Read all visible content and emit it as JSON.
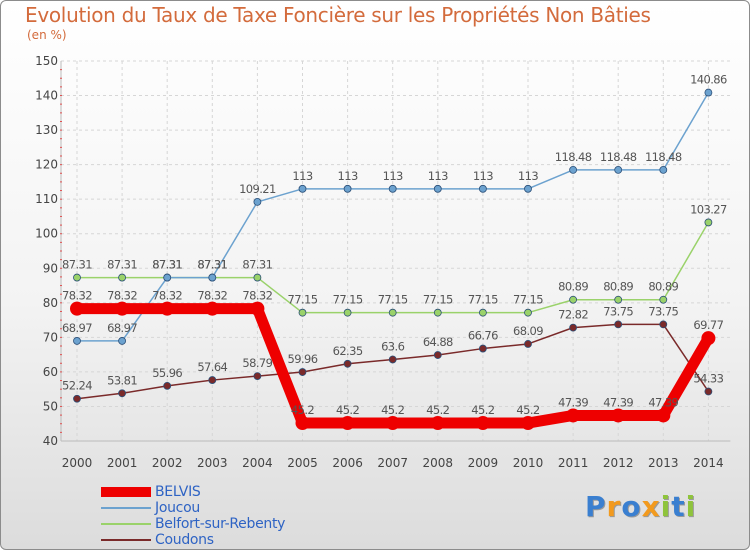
{
  "chart_data": {
    "type": "line",
    "title": "Evolution du Taux de Taxe Foncière sur les Propriétés Non Bâties",
    "subtitle": "(en %)",
    "xlabel": "",
    "ylabel": "",
    "x": [
      "2000",
      "2001",
      "2002",
      "2003",
      "2004",
      "2005",
      "2006",
      "2007",
      "2008",
      "2009",
      "2010",
      "2011",
      "2012",
      "2013",
      "2014"
    ],
    "ylim": [
      40,
      150
    ],
    "yticks": [
      40,
      50,
      60,
      70,
      80,
      90,
      100,
      110,
      120,
      130,
      140,
      150
    ],
    "grid": true,
    "legend_position": "bottom-left",
    "series": [
      {
        "name": "BELVIS",
        "color": "#ee0000",
        "emphasis": true,
        "values": [
          78.32,
          78.32,
          78.32,
          78.32,
          78.32,
          45.2,
          45.2,
          45.2,
          45.2,
          45.2,
          45.2,
          47.39,
          47.39,
          47.39,
          69.77
        ],
        "labels": [
          "78.32",
          "78.32",
          "78.32",
          "78.32",
          "78.32",
          "45.2",
          "45.2",
          "45.2",
          "45.2",
          "45.2",
          "45.2",
          "47.39",
          "47.39",
          "47.39",
          "69.77"
        ]
      },
      {
        "name": "Joucou",
        "color": "#6ca2cf",
        "values": [
          68.97,
          68.97,
          87.31,
          87.31,
          109.21,
          113,
          113,
          113,
          113,
          113,
          113,
          118.48,
          118.48,
          118.48,
          140.86
        ],
        "labels": [
          "68.97",
          "68.97",
          "87.31",
          "87.31",
          "109.21",
          "113",
          "113",
          "113",
          "113",
          "113",
          "113",
          "118.48",
          "118.48",
          "118.48",
          "140.86"
        ]
      },
      {
        "name": "Belfort-sur-Rebenty",
        "color": "#9ad26a",
        "values": [
          87.31,
          87.31,
          87.31,
          87.31,
          87.31,
          77.15,
          77.15,
          77.15,
          77.15,
          77.15,
          77.15,
          80.89,
          80.89,
          80.89,
          103.27
        ],
        "labels": [
          "87.31",
          "87.31",
          "87.31",
          "87.31",
          "87.31",
          "77.15",
          "77.15",
          "77.15",
          "77.15",
          "77.15",
          "77.15",
          "80.89",
          "80.89",
          "80.89",
          "103.27"
        ]
      },
      {
        "name": "Coudons",
        "color": "#7a2a2a",
        "values": [
          52.24,
          53.81,
          55.96,
          57.64,
          58.79,
          59.96,
          62.35,
          63.6,
          64.88,
          66.76,
          68.09,
          72.82,
          73.75,
          73.75,
          54.33
        ],
        "labels": [
          "52.24",
          "53.81",
          "55.96",
          "57.64",
          "58.79",
          "59.96",
          "62.35",
          "63.6",
          "64.88",
          "66.76",
          "68.09",
          "72.82",
          "73.75",
          "73.75",
          "54.33"
        ]
      }
    ]
  },
  "logo": {
    "letters": [
      {
        "char": "P",
        "color": "#3a7fd0"
      },
      {
        "char": "r",
        "color": "#f29a1e"
      },
      {
        "char": "o",
        "color": "#3a7fd0"
      },
      {
        "char": "x",
        "color": "#f29a1e"
      },
      {
        "char": "i",
        "color": "#8fc43c"
      },
      {
        "char": "t",
        "color": "#3a7fd0"
      },
      {
        "char": "i",
        "color": "#8fc43c"
      }
    ]
  }
}
